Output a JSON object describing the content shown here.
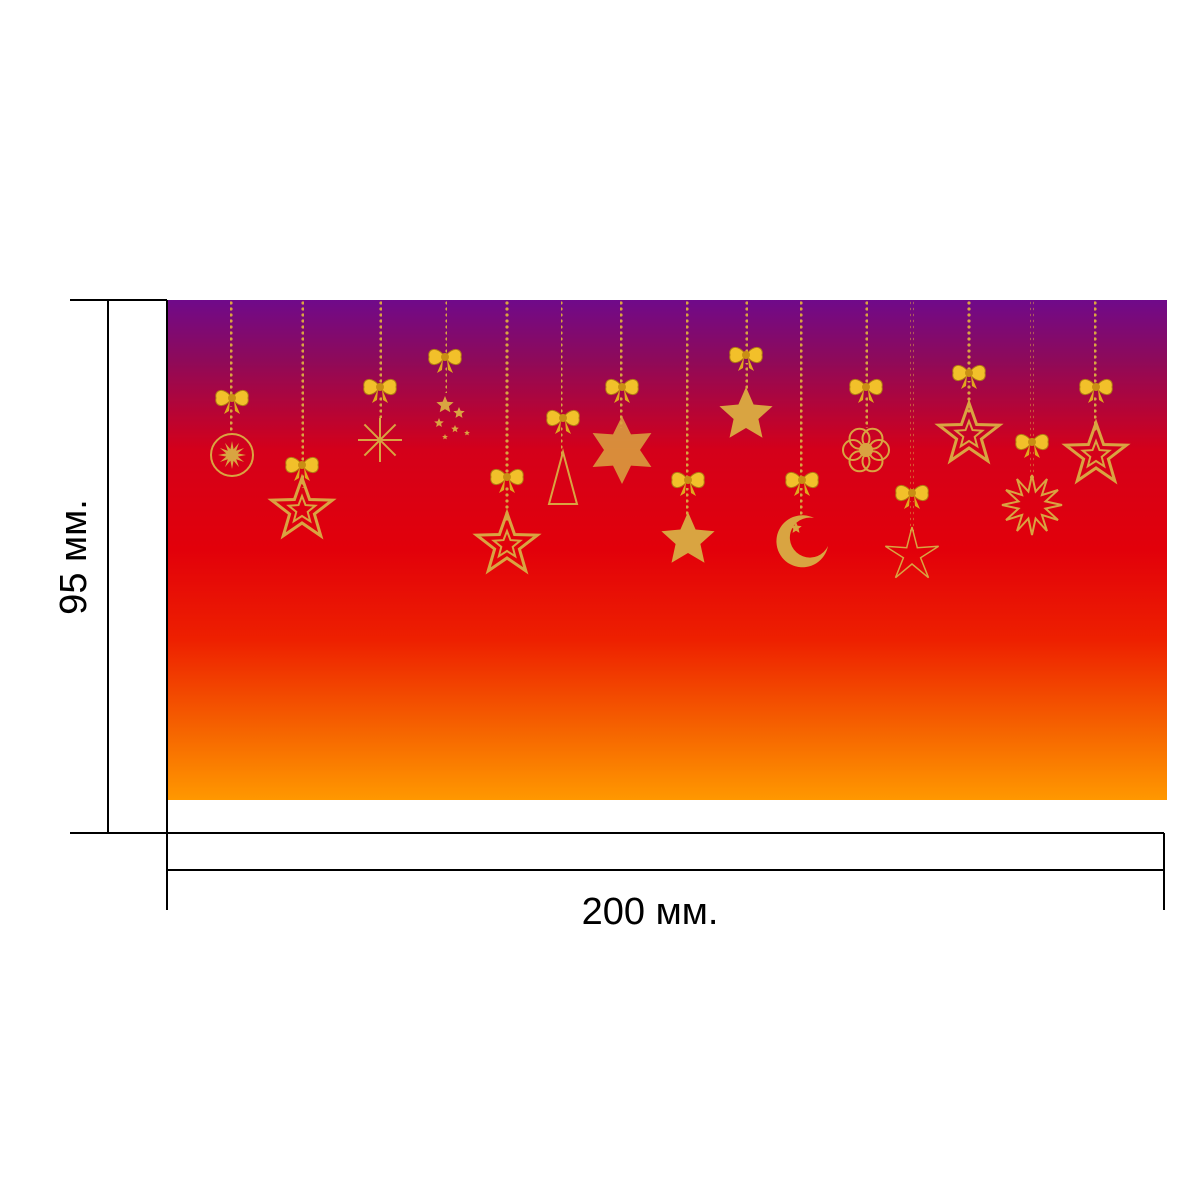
{
  "dimensions": {
    "width_label": "200 мм.",
    "height_label": "95 мм."
  },
  "card": {
    "gradient": [
      "#6f0a8a",
      "#8e0a5a",
      "#d4001a",
      "#e2000a",
      "#ee2000",
      "#f56000",
      "#ff9800"
    ],
    "ornament_color": "#d9a441",
    "bow_color": "#f2c02a",
    "ornaments": [
      "sun-ball",
      "star",
      "snowflake",
      "shooting-star-cluster",
      "snowflake-star",
      "christmas-tree",
      "star-flower",
      "star",
      "crescent-moon",
      "flower",
      "star",
      "star",
      "star-sun",
      "star"
    ]
  },
  "lines": {
    "color": "#000000"
  }
}
